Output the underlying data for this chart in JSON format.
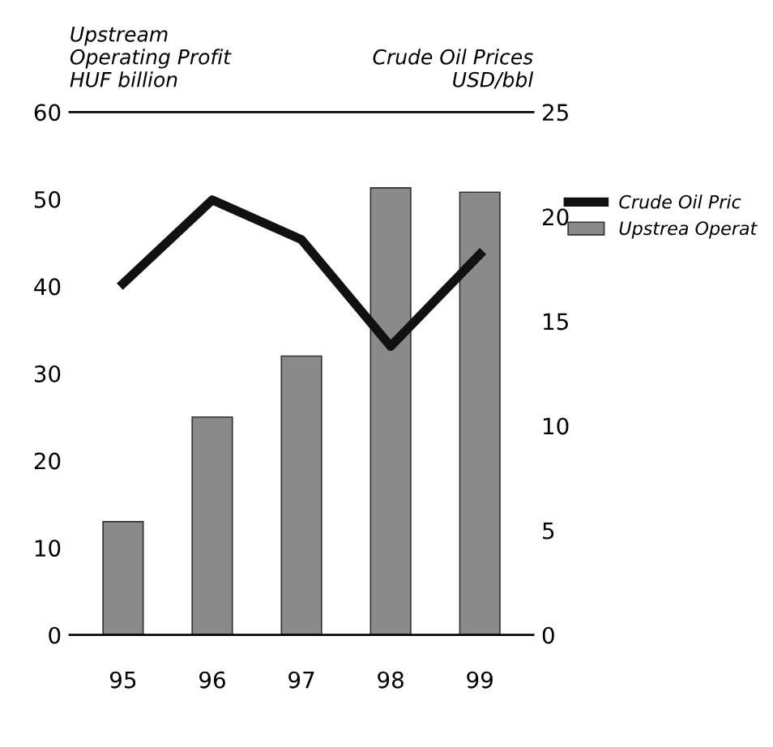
{
  "chart_data": {
    "type": "bar",
    "ylabel": "Upstream\nOperating Profit\nHUF billion",
    "y2label": "Crude Oil Prices\nUSD/bbl",
    "categories": [
      "95",
      "96",
      "97",
      "98",
      "99"
    ],
    "series": [
      {
        "name": "Crude Oil Pric",
        "type": "line",
        "axis": "y2",
        "color": "#111111",
        "values": [
          16.8,
          20.8,
          18.9,
          13.8,
          18.2
        ]
      },
      {
        "name": "Upstrea Operat",
        "color": "#8a8a8a",
        "values": [
          13,
          25,
          32,
          51.3,
          50.8
        ]
      }
    ],
    "ylim": [
      0,
      60
    ],
    "yticks": [
      0,
      10,
      20,
      30,
      40,
      50,
      60
    ],
    "y2lim": [
      0,
      25
    ],
    "y2ticks": [
      0,
      5,
      10,
      15,
      20,
      25
    ],
    "grid": false,
    "legend": "right"
  }
}
